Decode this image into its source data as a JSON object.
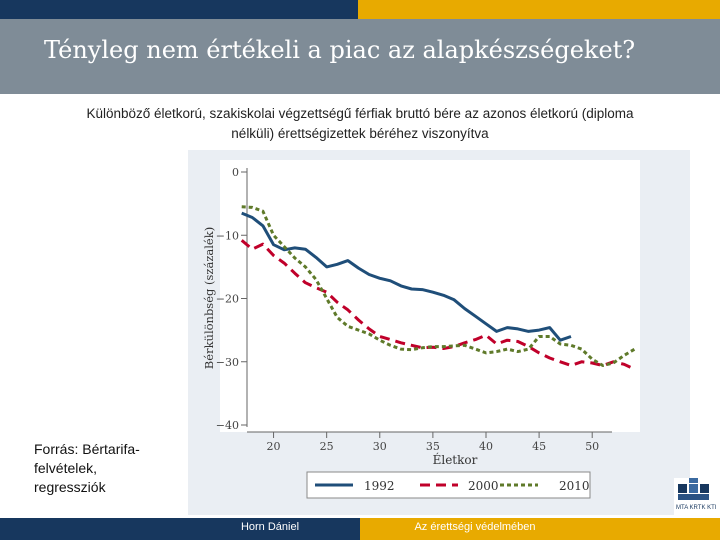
{
  "slide": {
    "title": "Tényleg nem értékeli a piac az alapkészségeket?",
    "subtitle_line1": "Különböző életkorú, szakiskolai végzettségű férfiak bruttó bére az azonos életkorú (diploma",
    "subtitle_line2": "nélküli) érettségizettek béréhez viszonyítva",
    "source_line1": "Forrás: Bértarifa-",
    "source_line2": "felvételek,",
    "source_line3": "regressziók",
    "footer_author": "Horn Dániel",
    "footer_right": "Az érettségi védelmében",
    "logo_text": "MTA KRTK KTI"
  },
  "colors": {
    "navy": "#17375e",
    "gold": "#e8aa00",
    "title_band": "#7f8c97",
    "series_1992": "#1f4e79",
    "series_2000": "#c0002a",
    "series_2010": "#5f7a2a"
  },
  "chart_data": {
    "type": "line",
    "xlabel": "Életkor",
    "ylabel": "Bérkülönbség (százalék)",
    "xticks": [
      20,
      25,
      30,
      35,
      40,
      45,
      50
    ],
    "yticks": [
      0,
      -10,
      -20,
      -30,
      -40
    ],
    "xlim": [
      17.5,
      54.5
    ],
    "ylim": [
      -40,
      0
    ],
    "grid": false,
    "legend_position": "bottom",
    "series": [
      {
        "name": "1992",
        "style": "solid",
        "points": [
          [
            17,
            -6.5
          ],
          [
            18,
            -7.2
          ],
          [
            19,
            -8.5
          ],
          [
            20,
            -11.5
          ],
          [
            21,
            -12.3
          ],
          [
            22,
            -12.0
          ],
          [
            23,
            -12.2
          ],
          [
            24,
            -13.5
          ],
          [
            25,
            -15.0
          ],
          [
            26,
            -14.6
          ],
          [
            27,
            -14.0
          ],
          [
            28,
            -15.2
          ],
          [
            29,
            -16.2
          ],
          [
            30,
            -16.8
          ],
          [
            31,
            -17.2
          ],
          [
            32,
            -18.0
          ],
          [
            33,
            -18.5
          ],
          [
            34,
            -18.6
          ],
          [
            35,
            -19.0
          ],
          [
            36,
            -19.5
          ],
          [
            37,
            -20.2
          ],
          [
            38,
            -21.6
          ],
          [
            39,
            -22.8
          ],
          [
            40,
            -24.0
          ],
          [
            41,
            -25.2
          ],
          [
            42,
            -24.6
          ],
          [
            43,
            -24.8
          ],
          [
            44,
            -25.2
          ],
          [
            45,
            -25.0
          ],
          [
            46,
            -24.6
          ],
          [
            47,
            -26.6
          ],
          [
            48,
            -26.0
          ]
        ]
      },
      {
        "name": "2000",
        "style": "dashed",
        "points": [
          [
            17,
            -10.8
          ],
          [
            18,
            -12.2
          ],
          [
            19,
            -11.4
          ],
          [
            20,
            -13.2
          ],
          [
            21,
            -14.4
          ],
          [
            22,
            -16.0
          ],
          [
            23,
            -17.5
          ],
          [
            24,
            -18.3
          ],
          [
            25,
            -19.0
          ],
          [
            26,
            -20.6
          ],
          [
            27,
            -21.8
          ],
          [
            28,
            -23.4
          ],
          [
            29,
            -24.8
          ],
          [
            30,
            -26.0
          ],
          [
            31,
            -26.5
          ],
          [
            32,
            -27.0
          ],
          [
            33,
            -27.4
          ],
          [
            34,
            -27.8
          ],
          [
            35,
            -27.7
          ],
          [
            36,
            -27.9
          ],
          [
            37,
            -27.6
          ],
          [
            38,
            -27.0
          ],
          [
            39,
            -26.5
          ],
          [
            40,
            -25.8
          ],
          [
            41,
            -27.2
          ],
          [
            42,
            -26.6
          ],
          [
            43,
            -26.8
          ],
          [
            44,
            -27.6
          ],
          [
            45,
            -28.6
          ],
          [
            46,
            -29.4
          ],
          [
            47,
            -30.0
          ],
          [
            48,
            -30.6
          ],
          [
            49,
            -30.0
          ],
          [
            50,
            -30.2
          ],
          [
            51,
            -30.6
          ],
          [
            52,
            -30.0
          ],
          [
            53,
            -30.4
          ],
          [
            54,
            -31.2
          ]
        ]
      },
      {
        "name": "2010",
        "style": "dotted",
        "points": [
          [
            17,
            -5.5
          ],
          [
            18,
            -5.6
          ],
          [
            19,
            -6.2
          ],
          [
            20,
            -10.0
          ],
          [
            21,
            -11.8
          ],
          [
            22,
            -13.6
          ],
          [
            23,
            -15.0
          ],
          [
            24,
            -17.0
          ],
          [
            25,
            -20.0
          ],
          [
            26,
            -23.0
          ],
          [
            27,
            -24.4
          ],
          [
            28,
            -25.0
          ],
          [
            29,
            -25.6
          ],
          [
            30,
            -26.6
          ],
          [
            31,
            -27.4
          ],
          [
            32,
            -28.0
          ],
          [
            33,
            -28.1
          ],
          [
            34,
            -27.8
          ],
          [
            35,
            -27.6
          ],
          [
            36,
            -27.6
          ],
          [
            37,
            -27.5
          ],
          [
            38,
            -27.4
          ],
          [
            39,
            -28.0
          ],
          [
            40,
            -28.6
          ],
          [
            41,
            -28.4
          ],
          [
            42,
            -28.0
          ],
          [
            43,
            -28.4
          ],
          [
            44,
            -28.0
          ],
          [
            45,
            -26.0
          ],
          [
            46,
            -26.0
          ],
          [
            47,
            -27.2
          ],
          [
            48,
            -27.4
          ],
          [
            49,
            -28.0
          ],
          [
            50,
            -29.6
          ],
          [
            51,
            -30.6
          ],
          [
            52,
            -30.2
          ],
          [
            53,
            -29.0
          ],
          [
            54,
            -28.0
          ]
        ]
      }
    ]
  }
}
